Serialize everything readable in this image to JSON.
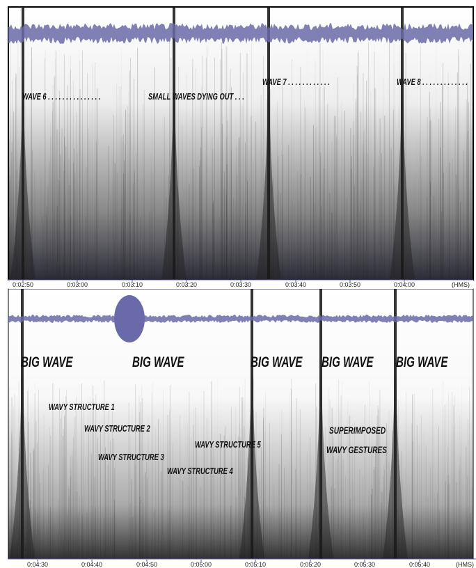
{
  "panels": [
    {
      "annotations": [
        "WAVE 6 . . . . . . . . . . . . . . .",
        "SMALL WAVES DYING OUT . . .",
        "WAVE 7 . . . . . . . . . . . .",
        "WAVE 8 . . . . . . . . . . . . ."
      ],
      "time_ticks": [
        "0:02:50",
        "0:03:00",
        "0:03:10",
        "0:03:20",
        "0:03:30",
        "0:03:40",
        "0:03:50",
        "0:04:00"
      ],
      "time_unit": "(HMS)"
    },
    {
      "annotations": [
        "BIG WAVE",
        "BIG WAVE",
        "BIG WAVE",
        "BIG WAVE",
        "BIG WAVE",
        "WAVY STRUCTURE 1",
        "WAVY STRUCTURE 2",
        "WAVY STRUCTURE 3",
        "WAVY STRUCTURE 4",
        "WAVY STRUCTURE 5",
        "SUPERIMPOSED",
        "WAVY GESTURES"
      ],
      "time_ticks": [
        "0:04:30",
        "0:04:40",
        "0:04:50",
        "0:05:00",
        "0:05:10",
        "0:05:20",
        "0:05:30",
        "0:05:40"
      ],
      "time_unit": "(HMS)"
    }
  ]
}
